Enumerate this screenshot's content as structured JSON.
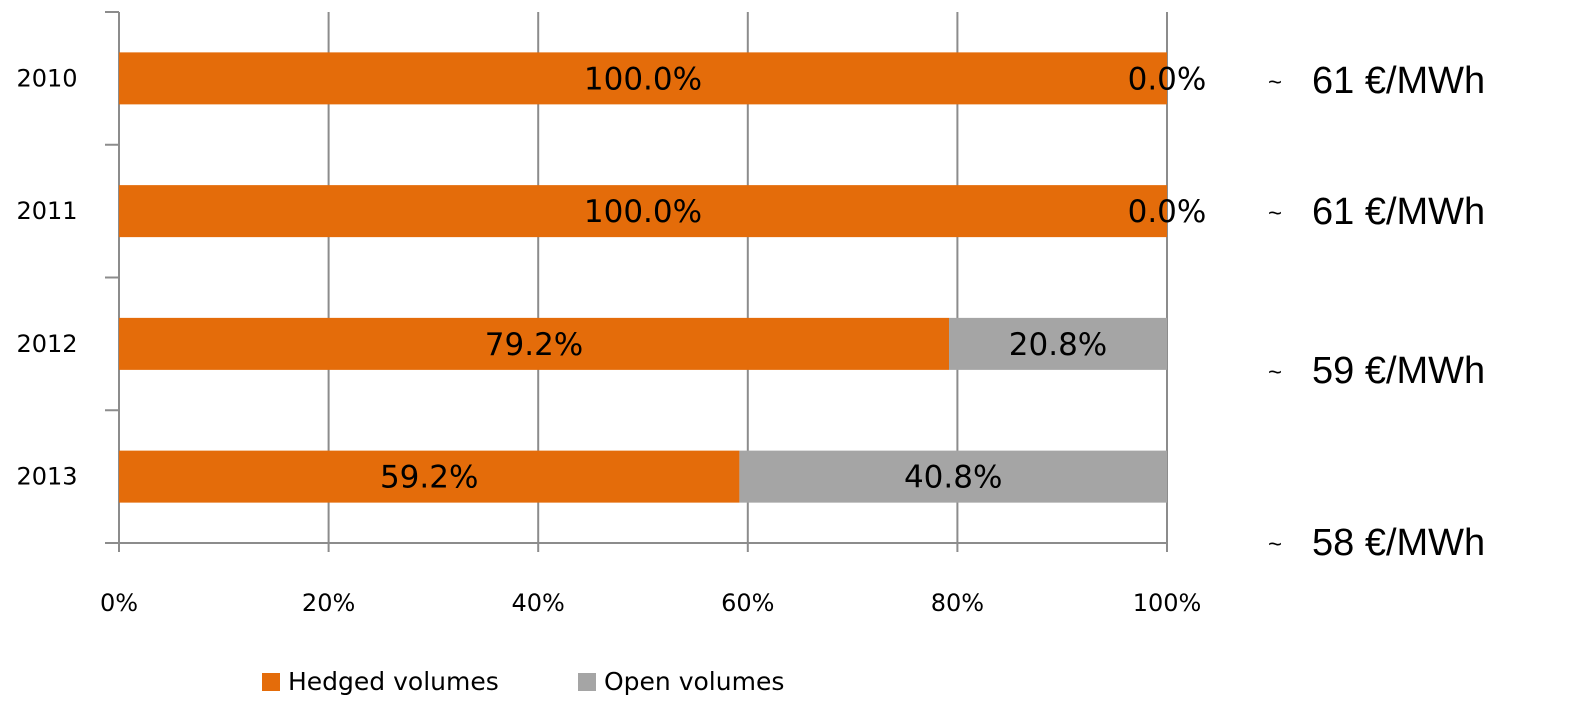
{
  "chart_data": {
    "type": "bar",
    "orientation": "horizontal",
    "stacked": true,
    "categories": [
      "2010",
      "2011",
      "2012",
      "2013"
    ],
    "series": [
      {
        "name": "Hedged volumes",
        "values": [
          100.0,
          100.0,
          79.2,
          59.2
        ],
        "labels": [
          "100.0%",
          "100.0%",
          "79.2%",
          "59.2%"
        ],
        "color": "#E46C0A"
      },
      {
        "name": "Open volumes",
        "values": [
          0.0,
          0.0,
          20.8,
          40.8
        ],
        "labels": [
          "0.0%",
          "0.0%",
          "20.8%",
          "40.8%"
        ],
        "color": "#A5A5A5"
      }
    ],
    "xlim": [
      0,
      100
    ],
    "x_ticks": [
      "0%",
      "20%",
      "40%",
      "60%",
      "80%",
      "100%"
    ],
    "grid": true,
    "gridline_color": "#8C8C8C",
    "legend_position": "bottom"
  },
  "price_annotations": [
    {
      "tilde": "~",
      "text": "61 €/MWh"
    },
    {
      "tilde": "~",
      "text": "61 €/MWh"
    },
    {
      "tilde": "~",
      "text": "59 €/MWh"
    },
    {
      "tilde": "~",
      "text": "58 €/MWh"
    }
  ]
}
